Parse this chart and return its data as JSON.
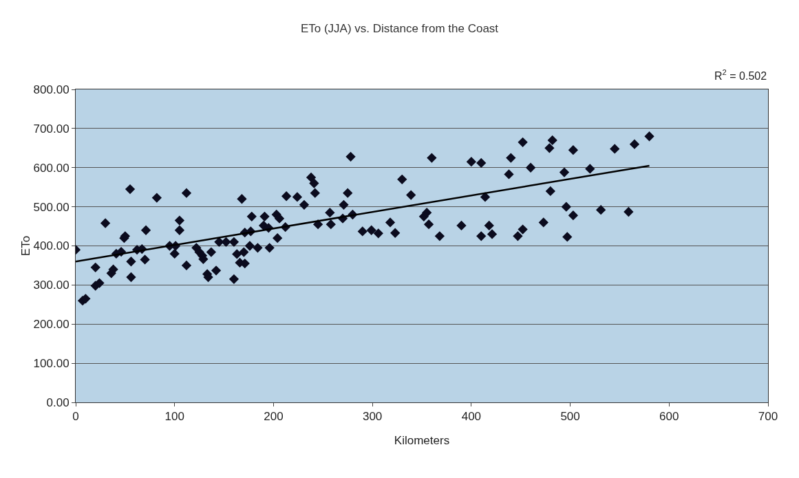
{
  "chart_data": {
    "type": "scatter",
    "title": "ETo (JJA) vs. Distance from the Coast",
    "xlabel": "Kilometers",
    "ylabel": "ETo",
    "annotations": [
      "R$^{2}$ = 0.502"
    ],
    "xlim": [
      0,
      700
    ],
    "xticks": [
      0,
      100,
      200,
      300,
      400,
      500,
      600,
      700
    ],
    "ylim": [
      0,
      800
    ],
    "yticks": [
      {
        "value": 0,
        "label": "0.00"
      },
      {
        "value": 100,
        "label": "100.00"
      },
      {
        "value": 200,
        "label": "200.00"
      },
      {
        "value": 300,
        "label": "300.00"
      },
      {
        "value": 400,
        "label": "400.00"
      },
      {
        "value": 500,
        "label": "500.00"
      },
      {
        "value": 600,
        "label": "600.00"
      },
      {
        "value": 700,
        "label": "700.00"
      },
      {
        "value": 800,
        "label": "800.00"
      }
    ],
    "grid": "y",
    "marker": "diamond",
    "series": [
      {
        "color": "#0b0b1e",
        "x": [
          0,
          7,
          10,
          20,
          20,
          24,
          30,
          36,
          38,
          41,
          46,
          49,
          50,
          55,
          56,
          56,
          62,
          67,
          71,
          70,
          82,
          95,
          100,
          101,
          105,
          105,
          112,
          112,
          122,
          125,
          128,
          129,
          133,
          134,
          137,
          142,
          145,
          152,
          160,
          160,
          163,
          166,
          168,
          170,
          171,
          171,
          176,
          177,
          178,
          184,
          190,
          191,
          195,
          196,
          203,
          204,
          206,
          212,
          213,
          224,
          231,
          238,
          241,
          242,
          245,
          257,
          258,
          270,
          271,
          275,
          278,
          280,
          290,
          299,
          306,
          318,
          323,
          330,
          339,
          352,
          355,
          357,
          360,
          368,
          390,
          400,
          410,
          410,
          414,
          418,
          421,
          438,
          440,
          447,
          452,
          452,
          460,
          473,
          479,
          480,
          482,
          494,
          496,
          497,
          503,
          503,
          520,
          531,
          545,
          559,
          565,
          580
        ],
        "values": [
          390,
          260,
          265,
          298,
          345,
          305,
          458,
          330,
          340,
          380,
          385,
          420,
          425,
          545,
          360,
          320,
          390,
          392,
          440,
          365,
          523,
          400,
          380,
          400,
          465,
          440,
          535,
          350,
          395,
          384,
          375,
          366,
          328,
          320,
          384,
          337,
          410,
          410,
          315,
          410,
          379,
          357,
          520,
          384,
          355,
          434,
          400,
          437,
          475,
          395,
          452,
          475,
          446,
          395,
          480,
          420,
          470,
          448,
          527,
          525,
          505,
          575,
          560,
          535,
          455,
          485,
          455,
          470,
          505,
          535,
          628,
          480,
          437,
          440,
          432,
          460,
          433,
          570,
          530,
          475,
          485,
          455,
          625,
          425,
          452,
          615,
          612,
          425,
          525,
          452,
          430,
          583,
          625,
          425,
          442,
          665,
          600,
          460,
          650,
          540,
          670,
          588,
          500,
          423,
          645,
          478,
          597,
          492,
          648,
          487,
          660,
          680
        ]
      },
      {
        "type": "line",
        "color": "#000000",
        "line_style": "solid",
        "marker": "none",
        "x": [
          0,
          580
        ],
        "values": [
          360,
          605
        ]
      }
    ]
  }
}
